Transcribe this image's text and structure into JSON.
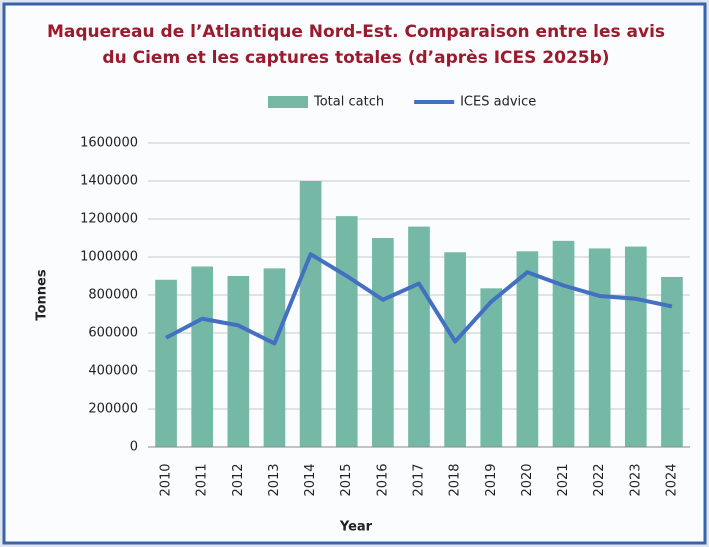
{
  "chart_data": {
    "type": "bar",
    "title": [
      "Maquereau de l’Atlantique Nord-Est. Comparaison entre les avis",
      "du Ciem et les captures totales (d’après ICES 2025b)"
    ],
    "x_label": "Year",
    "y_label": "Tonnes",
    "categories": [
      "2010",
      "2011",
      "2012",
      "2013",
      "2014",
      "2015",
      "2016",
      "2017",
      "2018",
      "2019",
      "2020",
      "2021",
      "2022",
      "2023",
      "2024"
    ],
    "series": [
      {
        "name": "Total catch",
        "type": "bar",
        "color": "#76b8a6",
        "values": [
          880000,
          950000,
          900000,
          940000,
          1400000,
          1215000,
          1100000,
          1160000,
          1025000,
          835000,
          1030000,
          1085000,
          1045000,
          1055000,
          895000
        ]
      },
      {
        "name": "ICES advice",
        "type": "line",
        "color": "#4470c2",
        "values": [
          575000,
          675000,
          640000,
          545000,
          1015000,
          900000,
          775000,
          860000,
          555000,
          765000,
          920000,
          850000,
          795000,
          780000,
          740000
        ]
      }
    ],
    "ylim": [
      0,
      1600000
    ],
    "yticks": [
      0,
      200000,
      400000,
      600000,
      800000,
      1000000,
      1200000,
      1400000,
      1600000
    ],
    "grid": true,
    "legend": "top"
  }
}
